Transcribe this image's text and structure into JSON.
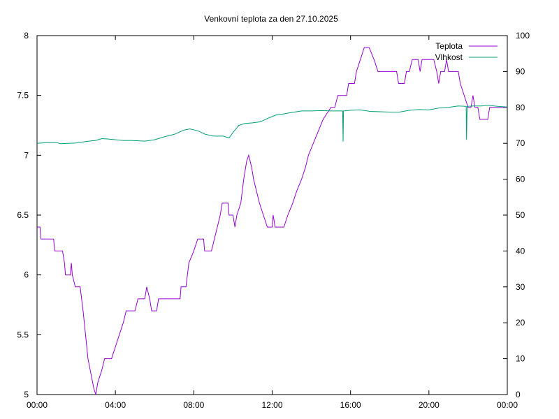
{
  "chart_data": {
    "type": "line",
    "title": "Venkovní teplota za den 27.10.2025",
    "x_ticks": [
      "00:00",
      "04:00",
      "08:00",
      "12:00",
      "16:00",
      "20:00",
      "00:00"
    ],
    "x_range_hours": [
      0,
      24
    ],
    "y_left": {
      "range": [
        5,
        8
      ],
      "ticks": [
        "5",
        "5.5",
        "6",
        "6.5",
        "7",
        "7.5",
        "8"
      ]
    },
    "y_right": {
      "range": [
        0,
        100
      ],
      "ticks": [
        "0",
        "10",
        "20",
        "30",
        "40",
        "50",
        "60",
        "70",
        "80",
        "90",
        "100"
      ]
    },
    "grid": false,
    "legend_position": "top-right",
    "series": [
      {
        "name": "Teplota",
        "axis": "left",
        "color": "#9400d3",
        "points": [
          [
            0,
            6.4
          ],
          [
            0.15,
            6.4
          ],
          [
            0.2,
            6.3
          ],
          [
            0.85,
            6.3
          ],
          [
            0.9,
            6.2
          ],
          [
            1.3,
            6.2
          ],
          [
            1.4,
            6.1
          ],
          [
            1.45,
            6.0
          ],
          [
            1.7,
            6.0
          ],
          [
            1.75,
            6.1
          ],
          [
            1.8,
            6.0
          ],
          [
            1.95,
            5.9
          ],
          [
            2.2,
            5.9
          ],
          [
            2.35,
            5.7
          ],
          [
            2.6,
            5.3
          ],
          [
            2.9,
            5.05
          ],
          [
            3.0,
            5.0
          ],
          [
            3.1,
            5.1
          ],
          [
            3.3,
            5.2
          ],
          [
            3.45,
            5.3
          ],
          [
            3.8,
            5.3
          ],
          [
            4.0,
            5.4
          ],
          [
            4.2,
            5.5
          ],
          [
            4.4,
            5.6
          ],
          [
            4.55,
            5.7
          ],
          [
            5.0,
            5.7
          ],
          [
            5.15,
            5.8
          ],
          [
            5.5,
            5.8
          ],
          [
            5.6,
            5.9
          ],
          [
            5.75,
            5.8
          ],
          [
            5.85,
            5.7
          ],
          [
            6.1,
            5.7
          ],
          [
            6.2,
            5.8
          ],
          [
            7.3,
            5.8
          ],
          [
            7.35,
            5.9
          ],
          [
            7.6,
            5.9
          ],
          [
            7.75,
            6.1
          ],
          [
            8.0,
            6.2
          ],
          [
            8.2,
            6.3
          ],
          [
            8.5,
            6.3
          ],
          [
            8.55,
            6.2
          ],
          [
            8.9,
            6.2
          ],
          [
            9.05,
            6.3
          ],
          [
            9.35,
            6.5
          ],
          [
            9.45,
            6.6
          ],
          [
            9.75,
            6.6
          ],
          [
            9.8,
            6.5
          ],
          [
            10.0,
            6.5
          ],
          [
            10.1,
            6.4
          ],
          [
            10.2,
            6.5
          ],
          [
            10.4,
            6.6
          ],
          [
            10.55,
            6.8
          ],
          [
            10.7,
            6.95
          ],
          [
            10.8,
            7.0
          ],
          [
            10.95,
            6.9
          ],
          [
            11.05,
            6.8
          ],
          [
            11.2,
            6.7
          ],
          [
            11.35,
            6.6
          ],
          [
            11.55,
            6.5
          ],
          [
            11.75,
            6.4
          ],
          [
            12.0,
            6.4
          ],
          [
            12.05,
            6.5
          ],
          [
            12.15,
            6.4
          ],
          [
            12.6,
            6.4
          ],
          [
            12.8,
            6.5
          ],
          [
            13.05,
            6.6
          ],
          [
            13.25,
            6.7
          ],
          [
            13.5,
            6.8
          ],
          [
            13.7,
            6.9
          ],
          [
            13.85,
            7.0
          ],
          [
            14.1,
            7.1
          ],
          [
            14.35,
            7.2
          ],
          [
            14.6,
            7.3
          ],
          [
            14.8,
            7.35
          ],
          [
            15.0,
            7.4
          ],
          [
            15.2,
            7.4
          ],
          [
            15.35,
            7.5
          ],
          [
            15.8,
            7.5
          ],
          [
            15.9,
            7.6
          ],
          [
            16.2,
            7.6
          ],
          [
            16.3,
            7.7
          ],
          [
            16.5,
            7.8
          ],
          [
            16.7,
            7.9
          ],
          [
            16.95,
            7.9
          ],
          [
            17.2,
            7.8
          ],
          [
            17.4,
            7.7
          ],
          [
            18.35,
            7.7
          ],
          [
            18.45,
            7.6
          ],
          [
            18.75,
            7.6
          ],
          [
            18.85,
            7.7
          ],
          [
            19.0,
            7.7
          ],
          [
            19.15,
            7.8
          ],
          [
            19.45,
            7.8
          ],
          [
            19.55,
            7.7
          ],
          [
            19.65,
            7.8
          ],
          [
            20.25,
            7.8
          ],
          [
            20.4,
            7.7
          ],
          [
            20.5,
            7.6
          ],
          [
            20.6,
            7.7
          ],
          [
            20.8,
            7.7
          ],
          [
            20.9,
            7.8
          ],
          [
            21.0,
            7.7
          ],
          [
            21.5,
            7.7
          ],
          [
            21.6,
            7.6
          ],
          [
            21.8,
            7.5
          ],
          [
            22.0,
            7.4
          ],
          [
            22.15,
            7.4
          ],
          [
            22.25,
            7.5
          ],
          [
            22.35,
            7.4
          ],
          [
            22.5,
            7.4
          ],
          [
            22.6,
            7.3
          ],
          [
            23.0,
            7.3
          ],
          [
            23.1,
            7.4
          ],
          [
            24.0,
            7.4
          ]
        ]
      },
      {
        "name": "Vlhkost",
        "axis": "right",
        "color": "#009e73",
        "points": [
          [
            0,
            70
          ],
          [
            0.5,
            70.2
          ],
          [
            1.0,
            70.2
          ],
          [
            1.2,
            69.9
          ],
          [
            2.0,
            70.1
          ],
          [
            2.5,
            70.5
          ],
          [
            3.0,
            70.8
          ],
          [
            3.3,
            71.3
          ],
          [
            3.6,
            71.2
          ],
          [
            4.0,
            71.0
          ],
          [
            4.4,
            70.8
          ],
          [
            4.8,
            70.8
          ],
          [
            5.5,
            70.6
          ],
          [
            6.0,
            71.0
          ],
          [
            6.5,
            71.8
          ],
          [
            7.0,
            72.5
          ],
          [
            7.5,
            73.7
          ],
          [
            7.8,
            74.0
          ],
          [
            8.2,
            73.5
          ],
          [
            8.6,
            72.5
          ],
          [
            9.0,
            72.0
          ],
          [
            9.5,
            72.0
          ],
          [
            9.8,
            71.5
          ],
          [
            10.0,
            73.0
          ],
          [
            10.3,
            75.0
          ],
          [
            10.6,
            75.5
          ],
          [
            11.0,
            75.7
          ],
          [
            11.4,
            76.0
          ],
          [
            11.8,
            77.0
          ],
          [
            12.2,
            77.9
          ],
          [
            12.6,
            78.2
          ],
          [
            13.0,
            78.6
          ],
          [
            13.5,
            79.0
          ],
          [
            14.0,
            79.0
          ],
          [
            14.5,
            79.1
          ],
          [
            15.0,
            79.0
          ],
          [
            15.5,
            79.0
          ],
          [
            15.6,
            79.0
          ],
          [
            15.62,
            70.5
          ],
          [
            15.64,
            79.0
          ],
          [
            16.0,
            79.2
          ],
          [
            16.5,
            79.3
          ],
          [
            17.0,
            78.9
          ],
          [
            17.5,
            78.8
          ],
          [
            18.0,
            78.7
          ],
          [
            18.5,
            78.7
          ],
          [
            19.0,
            79.2
          ],
          [
            19.5,
            79.4
          ],
          [
            20.0,
            79.3
          ],
          [
            20.5,
            79.8
          ],
          [
            21.0,
            80.0
          ],
          [
            21.5,
            80.4
          ],
          [
            21.9,
            80.3
          ],
          [
            21.92,
            71.0
          ],
          [
            21.95,
            80.3
          ],
          [
            22.3,
            80.4
          ],
          [
            22.7,
            80.4
          ],
          [
            23.0,
            80.6
          ],
          [
            23.5,
            80.3
          ],
          [
            24.0,
            80.1
          ]
        ]
      }
    ]
  }
}
